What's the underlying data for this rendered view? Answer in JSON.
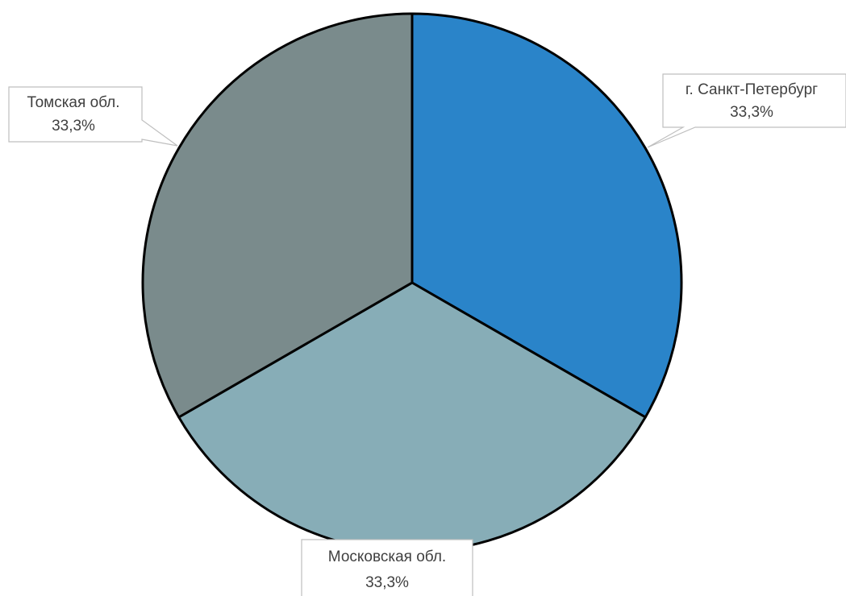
{
  "chart_data": {
    "type": "pie",
    "title": "",
    "categories": [
      "г. Санкт-Петербург",
      "Московская обл.",
      "Томская обл."
    ],
    "values": [
      33.3,
      33.3,
      33.3
    ],
    "data_labels": [
      "33,3%",
      "33,3%",
      "33,3%"
    ],
    "colors": [
      "#2a84c9",
      "#87adb7",
      "#7a8b8c"
    ],
    "start_angle_deg": 0,
    "direction": "clockwise",
    "legend": "none",
    "slice_border_color": "#000000"
  }
}
